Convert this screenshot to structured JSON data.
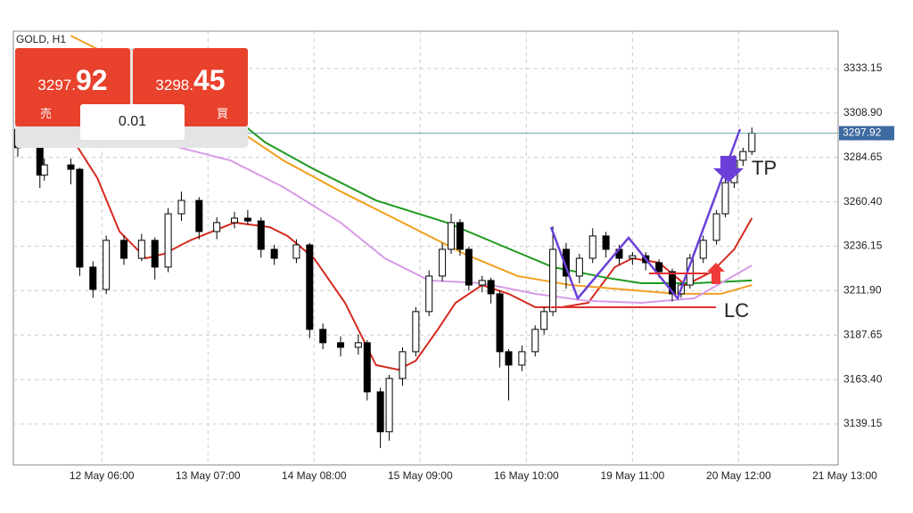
{
  "symbol": "GOLD, H1",
  "trade_panel": {
    "sell_label": "売",
    "sell_price_main": "3297.",
    "sell_price_big": "92",
    "buy_label": "買",
    "buy_price_main": "3298.",
    "buy_price_big": "45",
    "lot": "0.01"
  },
  "chart_data": {
    "type": "candlestick",
    "xlim": [
      0,
      186.5
    ],
    "xticks": [
      {
        "value": 20,
        "label": "12 May 06:00"
      },
      {
        "value": 44,
        "label": "13 May 07:00"
      },
      {
        "value": 68,
        "label": "14 May 08:00"
      },
      {
        "value": 92,
        "label": "15 May 09:00"
      },
      {
        "value": 116,
        "label": "16 May 10:00"
      },
      {
        "value": 140,
        "label": "19 May 11:00"
      },
      {
        "value": 164,
        "label": "20 May 12:00"
      },
      {
        "value": 188,
        "label": "21 May 13:00"
      }
    ],
    "ylim": [
      3116.8,
      3353.6
    ],
    "yticks": [
      3333.15,
      {
        "value": 3308.9,
        "label": "3308.90"
      },
      3284.65,
      {
        "value": 3260.4,
        "label": "3260.40"
      },
      3236.15,
      {
        "value": 3211.9,
        "label": "3211.90"
      },
      3187.65,
      {
        "value": 3163.4,
        "label": "3163.40"
      },
      3139.15
    ],
    "grid": true,
    "current_price": 3297.92,
    "candles": {
      "x": [
        1,
        6,
        7,
        13,
        15,
        18,
        21,
        25,
        29,
        32,
        35,
        38,
        42,
        46,
        50,
        53,
        56,
        59,
        64,
        67,
        70,
        74,
        78,
        80,
        83,
        85,
        88,
        91,
        94,
        97,
        99,
        101,
        103,
        106,
        108,
        110,
        112,
        115,
        118,
        120,
        122,
        125,
        128,
        131,
        134,
        137,
        140,
        143,
        146,
        149,
        151,
        153,
        156,
        159,
        161,
        163,
        165,
        167
      ],
      "open": [
        3300,
        3290,
        3275,
        3280.6,
        3278.2,
        3224.8,
        3212.6,
        3239.4,
        3229.6,
        3239.4,
        3224.8,
        3253.9,
        3261.2,
        3244.2,
        3249.1,
        3251.5,
        3250,
        3234.5,
        3229.6,
        3236.9,
        3190.8,
        3183.5,
        3181,
        3183.5,
        3156.7,
        3134.9,
        3164,
        3178.6,
        3200.5,
        3219.9,
        3234.5,
        3249.1,
        3234.5,
        3215,
        3217.5,
        3210.2,
        3178.6,
        3171.3,
        3178.6,
        3190.8,
        3200.5,
        3234.5,
        3219.9,
        3229.6,
        3241.8,
        3234.5,
        3229.6,
        3231,
        3227.2,
        3222.3,
        3210.2,
        3215,
        3229.6,
        3239.4,
        3253.9,
        3270.9,
        3283.1,
        3287.9
      ],
      "high": [
        3305,
        3292,
        3284,
        3284,
        3279,
        3228,
        3242,
        3242,
        3243,
        3241,
        3257,
        3266,
        3263,
        3252,
        3255,
        3256,
        3252,
        3237,
        3240,
        3238,
        3194,
        3187,
        3188,
        3185,
        3159,
        3166,
        3181,
        3203,
        3223,
        3238,
        3254,
        3251,
        3236,
        3220,
        3219,
        3212,
        3180,
        3182,
        3193,
        3203,
        3247,
        3238,
        3232,
        3246,
        3244,
        3237,
        3233,
        3233,
        3229,
        3224,
        3216,
        3232,
        3242,
        3256,
        3274,
        3286,
        3290,
        3301
      ],
      "low": [
        3285,
        3268,
        3272,
        3270,
        3220,
        3208,
        3210,
        3226,
        3228,
        3218,
        3222,
        3250,
        3240,
        3240,
        3246,
        3248,
        3230,
        3226,
        3227,
        3186,
        3180,
        3176,
        3177,
        3152,
        3126,
        3130,
        3160,
        3176,
        3198,
        3217,
        3232,
        3231,
        3212,
        3211,
        3205,
        3170,
        3152,
        3168,
        3176,
        3188,
        3198,
        3213,
        3216,
        3227,
        3230,
        3226,
        3226,
        3223,
        3219,
        3206,
        3208,
        3213,
        3227,
        3237,
        3252,
        3268,
        3280,
        3286
      ],
      "close": [
        3290,
        3275,
        3280.6,
        3278.2,
        3224.8,
        3212.6,
        3239.4,
        3229.6,
        3239.4,
        3224.8,
        3253.9,
        3261.2,
        3244.2,
        3249.1,
        3251.5,
        3250,
        3234.5,
        3229.6,
        3236.9,
        3190.8,
        3183.5,
        3181,
        3183.5,
        3156.7,
        3134.9,
        3164,
        3178.6,
        3200.5,
        3219.9,
        3234.5,
        3249.1,
        3234.5,
        3215,
        3217.5,
        3210.2,
        3178.6,
        3171.3,
        3178.6,
        3190.8,
        3200.5,
        3234.5,
        3219.9,
        3229.6,
        3241.8,
        3234.5,
        3229.6,
        3231,
        3227.2,
        3222.3,
        3210.2,
        3215,
        3229.6,
        3239.4,
        3253.9,
        3270.9,
        3283.1,
        3287.9,
        3297.92
      ]
    },
    "series": [
      {
        "color": "#d42a1e",
        "x": [
          1,
          10,
          19,
          24,
          30,
          34,
          40,
          50,
          58,
          62,
          68,
          75,
          82,
          87,
          91,
          96,
          100,
          106,
          112,
          118,
          124,
          130,
          136,
          140,
          146,
          152,
          158,
          163,
          167
        ],
        "values": [
          3341.4,
          3307.4,
          3273.4,
          3244.2,
          3229.6,
          3232,
          3239.4,
          3249.1,
          3246.6,
          3241.8,
          3229.6,
          3205.3,
          3171.3,
          3168.8,
          3173.7,
          3190.8,
          3205.3,
          3215,
          3210.2,
          3202.9,
          3202.9,
          3205.3,
          3224.8,
          3229.6,
          3227.2,
          3215,
          3222.3,
          3234.5,
          3251.5
        ]
      },
      {
        "color": "#1e9a1e",
        "x": [
          27,
          47,
          57,
          68,
          82,
          98,
          110,
          122,
          134,
          142,
          154,
          167
        ],
        "values": [
          3336.6,
          3312.2,
          3292.8,
          3278.2,
          3261.2,
          3249.1,
          3236.9,
          3224.8,
          3219,
          3216,
          3216,
          3217.5
        ]
      },
      {
        "color": "#f0a020",
        "x": [
          13,
          37,
          49,
          61,
          74,
          88,
          102,
          114,
          126,
          138,
          150,
          160,
          167
        ],
        "values": [
          3351.1,
          3322,
          3302.5,
          3283.1,
          3266.1,
          3249.1,
          3232,
          3219.9,
          3215,
          3212.6,
          3210.2,
          3210.2,
          3215
        ]
      },
      {
        "color": "#d79be6",
        "x": [
          17,
          37,
          49,
          61,
          74,
          84,
          94,
          106,
          118,
          130,
          142,
          154,
          167
        ],
        "values": [
          3312.2,
          3290.4,
          3283.1,
          3268.5,
          3249.1,
          3229.6,
          3217.5,
          3216,
          3210.2,
          3206.3,
          3205.3,
          3207.8,
          3225.7
        ]
      }
    ],
    "annotations": [
      "TP",
      "LC"
    ]
  }
}
